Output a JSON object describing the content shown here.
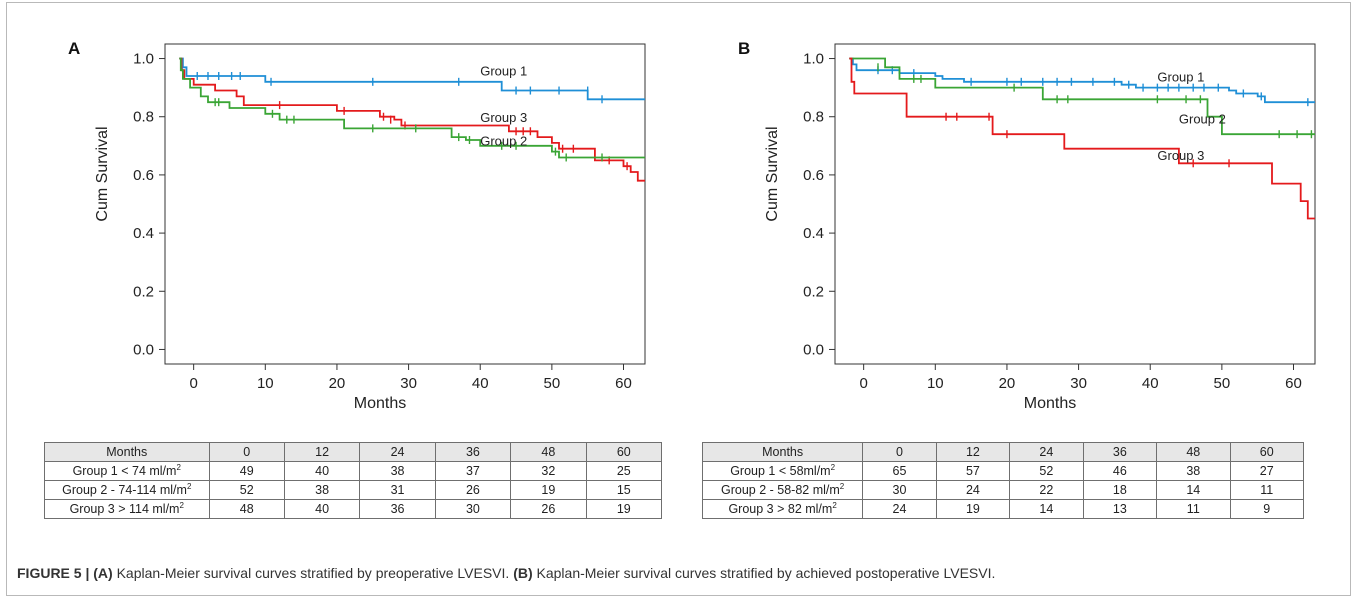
{
  "figure": {
    "caption_label": "FIGURE 5 |",
    "caption_a_tag": "(A)",
    "caption_a_text": " Kaplan-Meier survival curves stratified by preoperative LVESVI. ",
    "caption_b_tag": "(B)",
    "caption_b_text": " Kaplan-Meier survival curves stratified by achieved postoperative LVESVI."
  },
  "chart_data": [
    {
      "panel": "A",
      "type": "line",
      "step": true,
      "xlabel": "Months",
      "ylabel": "Cum Survival",
      "xlim": [
        -4,
        63
      ],
      "ylim": [
        -0.05,
        1.05
      ],
      "xticks": [
        0,
        10,
        20,
        30,
        40,
        50,
        60
      ],
      "yticks": [
        0.0,
        0.2,
        0.4,
        0.6,
        0.8,
        1.0
      ],
      "grid": false,
      "series": [
        {
          "name": "Group 1",
          "color": "#1f8fd6",
          "points": [
            [
              -2,
              1.0
            ],
            [
              -1.5,
              0.97
            ],
            [
              -1,
              0.94
            ],
            [
              10,
              0.92
            ],
            [
              43,
              0.89
            ],
            [
              55,
              0.86
            ],
            [
              63,
              0.86
            ]
          ],
          "censors": [
            [
              -1.6,
              0.97
            ],
            [
              0.5,
              0.94
            ],
            [
              2,
              0.94
            ],
            [
              3.5,
              0.94
            ],
            [
              5.3,
              0.94
            ],
            [
              6.5,
              0.94
            ],
            [
              10.8,
              0.92
            ],
            [
              25,
              0.92
            ],
            [
              37,
              0.92
            ],
            [
              45,
              0.89
            ],
            [
              47,
              0.89
            ],
            [
              51,
              0.89
            ],
            [
              55,
              0.89
            ],
            [
              57,
              0.86
            ]
          ],
          "label": "Group 1",
          "label_at": [
            40,
            0.955
          ]
        },
        {
          "name": "Group 3",
          "color": "#e41a1c",
          "points": [
            [
              -2,
              1.0
            ],
            [
              -1.7,
              0.96
            ],
            [
              -1.3,
              0.93
            ],
            [
              0,
              0.91
            ],
            [
              3,
              0.89
            ],
            [
              6,
              0.87
            ],
            [
              7,
              0.84
            ],
            [
              20,
              0.82
            ],
            [
              26,
              0.8
            ],
            [
              28,
              0.79
            ],
            [
              29,
              0.77
            ],
            [
              44,
              0.75
            ],
            [
              48,
              0.73
            ],
            [
              50,
              0.71
            ],
            [
              51,
              0.69
            ],
            [
              56,
              0.65
            ],
            [
              60,
              0.63
            ],
            [
              61,
              0.61
            ],
            [
              62,
              0.58
            ],
            [
              63,
              0.58
            ]
          ],
          "censors": [
            [
              12,
              0.84
            ],
            [
              21,
              0.82
            ],
            [
              26.5,
              0.8
            ],
            [
              27.5,
              0.79
            ],
            [
              29.5,
              0.77
            ],
            [
              45,
              0.75
            ],
            [
              46,
              0.75
            ],
            [
              47,
              0.75
            ],
            [
              51.5,
              0.69
            ],
            [
              53,
              0.69
            ],
            [
              58,
              0.65
            ],
            [
              60.5,
              0.63
            ]
          ],
          "label": "Group 3",
          "label_at": [
            40,
            0.795
          ]
        },
        {
          "name": "Group 2",
          "color": "#3aa535",
          "points": [
            [
              -2,
              1.0
            ],
            [
              -1.8,
              0.96
            ],
            [
              -1.5,
              0.93
            ],
            [
              -0.5,
              0.9
            ],
            [
              1,
              0.87
            ],
            [
              2,
              0.85
            ],
            [
              5,
              0.83
            ],
            [
              10,
              0.81
            ],
            [
              12,
              0.79
            ],
            [
              21,
              0.76
            ],
            [
              36,
              0.73
            ],
            [
              38,
              0.72
            ],
            [
              40,
              0.7
            ],
            [
              50,
              0.68
            ],
            [
              51,
              0.66
            ],
            [
              63,
              0.66
            ]
          ],
          "censors": [
            [
              3,
              0.85
            ],
            [
              3.5,
              0.85
            ],
            [
              11,
              0.81
            ],
            [
              13,
              0.79
            ],
            [
              14,
              0.79
            ],
            [
              25,
              0.76
            ],
            [
              31,
              0.76
            ],
            [
              37,
              0.73
            ],
            [
              38.5,
              0.72
            ],
            [
              43,
              0.7
            ],
            [
              45,
              0.7
            ],
            [
              50.5,
              0.68
            ],
            [
              52,
              0.66
            ],
            [
              57,
              0.66
            ]
          ],
          "label": "Group 2",
          "label_at": [
            40,
            0.715
          ]
        }
      ],
      "risk_table": {
        "header": [
          "Months",
          "0",
          "12",
          "24",
          "36",
          "48",
          "60"
        ],
        "rows": [
          {
            "label": "Group 1 < 74 ml/m",
            "sup": "2",
            "values": [
              "49",
              "40",
              "38",
              "37",
              "32",
              "25"
            ]
          },
          {
            "label": "Group 2 - 74-114 ml/m",
            "sup": "2",
            "values": [
              "52",
              "38",
              "31",
              "26",
              "19",
              "15"
            ]
          },
          {
            "label": "Group 3 > 114 ml/m",
            "sup": "2",
            "values": [
              "48",
              "40",
              "36",
              "30",
              "26",
              "19"
            ]
          }
        ]
      }
    },
    {
      "panel": "B",
      "type": "line",
      "step": true,
      "xlabel": "Months",
      "ylabel": "Cum Survival",
      "xlim": [
        -4,
        63
      ],
      "ylim": [
        -0.05,
        1.05
      ],
      "xticks": [
        0,
        10,
        20,
        30,
        40,
        50,
        60
      ],
      "yticks": [
        0.0,
        0.2,
        0.4,
        0.6,
        0.8,
        1.0
      ],
      "grid": false,
      "series": [
        {
          "name": "Group 1",
          "color": "#1f8fd6",
          "points": [
            [
              -2,
              1.0
            ],
            [
              -1.5,
              0.98
            ],
            [
              -1,
              0.96
            ],
            [
              5,
              0.95
            ],
            [
              10,
              0.94
            ],
            [
              11,
              0.93
            ],
            [
              14,
              0.92
            ],
            [
              36,
              0.91
            ],
            [
              38,
              0.9
            ],
            [
              51,
              0.89
            ],
            [
              52,
              0.88
            ],
            [
              55,
              0.87
            ],
            [
              56,
              0.85
            ],
            [
              63,
              0.85
            ]
          ],
          "censors": [
            [
              2,
              0.96
            ],
            [
              4,
              0.96
            ],
            [
              7,
              0.95
            ],
            [
              15,
              0.92
            ],
            [
              20,
              0.92
            ],
            [
              22,
              0.92
            ],
            [
              25,
              0.92
            ],
            [
              27,
              0.92
            ],
            [
              29,
              0.92
            ],
            [
              32,
              0.92
            ],
            [
              35,
              0.92
            ],
            [
              37,
              0.91
            ],
            [
              39,
              0.9
            ],
            [
              41,
              0.9
            ],
            [
              42.5,
              0.9
            ],
            [
              44,
              0.9
            ],
            [
              46,
              0.9
            ],
            [
              47.5,
              0.9
            ],
            [
              49.5,
              0.9
            ],
            [
              53,
              0.88
            ],
            [
              55.5,
              0.87
            ],
            [
              62,
              0.85
            ]
          ],
          "label": "Group 1",
          "label_at": [
            41,
            0.935
          ]
        },
        {
          "name": "Group 2",
          "color": "#3aa535",
          "points": [
            [
              -2,
              1.0
            ],
            [
              3,
              0.97
            ],
            [
              5,
              0.93
            ],
            [
              10,
              0.9
            ],
            [
              25,
              0.86
            ],
            [
              48,
              0.8
            ],
            [
              50,
              0.74
            ],
            [
              63,
              0.74
            ]
          ],
          "censors": [
            [
              2,
              0.97
            ],
            [
              7,
              0.93
            ],
            [
              8,
              0.93
            ],
            [
              21,
              0.9
            ],
            [
              27,
              0.86
            ],
            [
              28.5,
              0.86
            ],
            [
              41,
              0.86
            ],
            [
              45,
              0.86
            ],
            [
              47,
              0.86
            ],
            [
              58,
              0.74
            ],
            [
              60.5,
              0.74
            ],
            [
              62.5,
              0.74
            ]
          ],
          "label": "Group 2",
          "label_at": [
            44,
            0.79
          ]
        },
        {
          "name": "Group 3",
          "color": "#e41a1c",
          "points": [
            [
              -2,
              1.0
            ],
            [
              -1.7,
              0.92
            ],
            [
              -1.3,
              0.88
            ],
            [
              6,
              0.8
            ],
            [
              18,
              0.74
            ],
            [
              28,
              0.69
            ],
            [
              44,
              0.64
            ],
            [
              57,
              0.57
            ],
            [
              61,
              0.51
            ],
            [
              62,
              0.45
            ],
            [
              63,
              0.45
            ]
          ],
          "censors": [
            [
              11.5,
              0.8
            ],
            [
              13,
              0.8
            ],
            [
              17.5,
              0.8
            ],
            [
              20,
              0.74
            ],
            [
              46,
              0.64
            ],
            [
              51,
              0.64
            ]
          ],
          "label": "Group 3",
          "label_at": [
            41,
            0.665
          ]
        }
      ],
      "risk_table": {
        "header": [
          "Months",
          "0",
          "12",
          "24",
          "36",
          "48",
          "60"
        ],
        "rows": [
          {
            "label": "Group 1 < 58ml/m",
            "sup": "2",
            "values": [
              "65",
              "57",
              "52",
              "46",
              "38",
              "27"
            ]
          },
          {
            "label": "Group 2 - 58-82 ml/m",
            "sup": "2",
            "values": [
              "30",
              "24",
              "22",
              "18",
              "14",
              "11"
            ]
          },
          {
            "label": "Group 3 > 82 ml/m",
            "sup": "2",
            "values": [
              "24",
              "19",
              "14",
              "13",
              "11",
              "9"
            ]
          }
        ]
      }
    }
  ]
}
